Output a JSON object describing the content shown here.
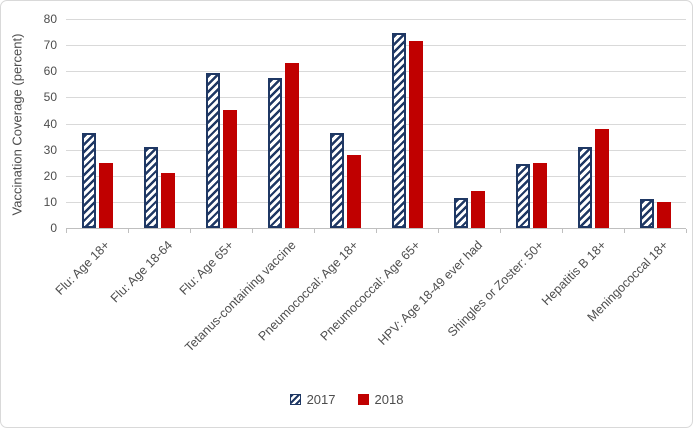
{
  "chart_data": {
    "type": "bar",
    "title": "",
    "xlabel": "",
    "ylabel": "Vaccination Coverage (percent)",
    "ylim": [
      0,
      80
    ],
    "yticks": [
      0,
      10,
      20,
      30,
      40,
      50,
      60,
      70,
      80
    ],
    "grid": true,
    "legend_position": "bottom",
    "categories": [
      "Flu: Age 18+",
      "Flu: Age 18-64",
      "Flu: Age 65+",
      "Tetanus-containing vaccine",
      "Pneumococcal: Age 18+",
      "Pneumococcal: Age 65+",
      "HPV: Age 18-49 ever had",
      "Shingles or Zoster: 50+",
      "Hepatitis B 18+",
      "Meningococcal 18+"
    ],
    "series": [
      {
        "name": "2017",
        "fill": "diagonal-hatch",
        "color": "#1F3864",
        "values": [
          36.5,
          31,
          59.5,
          57.5,
          36.5,
          74.5,
          11.5,
          24.5,
          31,
          11
        ]
      },
      {
        "name": "2018",
        "fill": "solid",
        "color": "#C00000",
        "values": [
          25,
          21,
          45,
          63,
          28,
          71.5,
          14,
          25,
          38,
          10
        ]
      }
    ]
  },
  "legend": {
    "items": [
      {
        "label": "2017"
      },
      {
        "label": "2018"
      }
    ]
  },
  "colors": {
    "series_2017": "#1F3864",
    "series_2018": "#C00000",
    "gridline": "#D9D9D9",
    "axis_line": "#BFBFBF",
    "text": "#4d4d4d",
    "frame_border": "#D9D9D9",
    "background": "#FFFFFF"
  }
}
